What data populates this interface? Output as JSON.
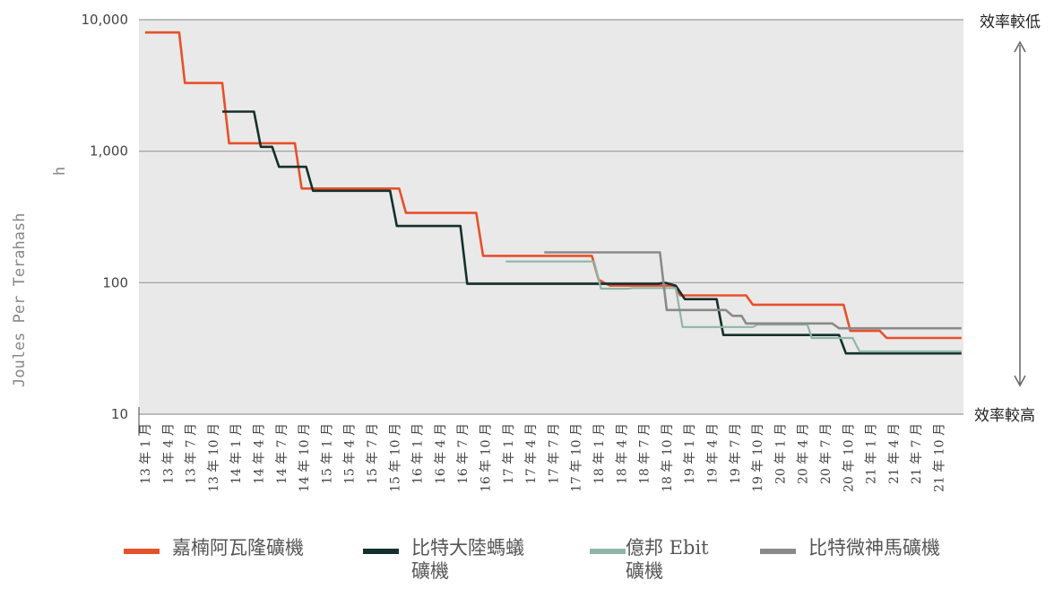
{
  "chart_data": {
    "type": "line",
    "ylabel": "Joules Per Terahash",
    "ylabel_tail": "h",
    "yscale": "log",
    "ylim": [
      10,
      10000
    ],
    "ytick_labels": [
      "10,000",
      "1,000",
      "100",
      "10"
    ],
    "annotation_top": "效率較低",
    "annotation_bottom": "效率較高",
    "categories": [
      "13 年 1 月",
      "13 年 4 月",
      "13 年 7 月",
      "13 年 10 月",
      "14 年 1 月",
      "14 年 4 月",
      "14 年 7 月",
      "14 年 10 月",
      "15 年 1 月",
      "15 年 4 月",
      "15 年 7 月",
      "15 年 10 月",
      "16 年 1 月",
      "16 年 4 月",
      "16 年 7 月",
      "16 年 10 月",
      "17 年 1 月",
      "17 年 4 月",
      "17 年 7 月",
      "17 年 10 月",
      "18 年 1 月",
      "18 年 4 月",
      "18 年 7 月",
      "18 年 10 月",
      "19 年 1 月",
      "19 年 4 月",
      "19 年 7 月",
      "19 年 10 月",
      "20 年 1 月",
      "20 年 4 月",
      "20 年 7 月",
      "20 年 10 月",
      "21 年 1 月",
      "21 年 4 月",
      "21 年 7 月",
      "21 年 10 月"
    ],
    "grid": true,
    "legend_position": "bottom",
    "series": [
      {
        "name": "嘉楠阿瓦隆礦機",
        "color": "#e8502a",
        "points": [
          [
            0,
            8000
          ],
          [
            1.5,
            8000
          ],
          [
            1.75,
            3300
          ],
          [
            3.4,
            3300
          ],
          [
            3.7,
            1150
          ],
          [
            6.6,
            1150
          ],
          [
            6.9,
            520
          ],
          [
            11.2,
            520
          ],
          [
            11.5,
            340
          ],
          [
            14.6,
            340
          ],
          [
            14.9,
            160
          ],
          [
            19.7,
            160
          ],
          [
            20,
            105
          ],
          [
            20.5,
            95
          ],
          [
            23.3,
            95
          ],
          [
            23.6,
            80
          ],
          [
            26.5,
            80
          ],
          [
            26.8,
            68
          ],
          [
            30.8,
            68
          ],
          [
            31.1,
            43
          ],
          [
            32.4,
            43
          ],
          [
            32.7,
            38
          ],
          [
            36,
            38
          ]
        ]
      },
      {
        "name": "比特大陸螞蟻礦機",
        "color": "#15302c",
        "points": [
          [
            3.4,
            2000
          ],
          [
            4.8,
            2000
          ],
          [
            5.1,
            1080
          ],
          [
            5.6,
            1080
          ],
          [
            5.9,
            760
          ],
          [
            7.1,
            760
          ],
          [
            7.4,
            500
          ],
          [
            10.8,
            500
          ],
          [
            11.1,
            270
          ],
          [
            13.9,
            270
          ],
          [
            14.2,
            98
          ],
          [
            22.6,
            98
          ],
          [
            22.9,
            100
          ],
          [
            23.4,
            95
          ],
          [
            23.8,
            75
          ],
          [
            25.2,
            75
          ],
          [
            25.5,
            40
          ],
          [
            30.6,
            40
          ],
          [
            30.9,
            29
          ],
          [
            36,
            29
          ]
        ]
      },
      {
        "name": "億邦 Ebit 礦機",
        "color": "#8fb5a9",
        "points": [
          [
            15.9,
            145
          ],
          [
            19.8,
            145
          ],
          [
            20.1,
            90
          ],
          [
            21.3,
            90
          ],
          [
            21.5,
            91
          ],
          [
            23.4,
            91
          ],
          [
            23.7,
            46
          ],
          [
            26.8,
            46
          ],
          [
            27,
            48
          ],
          [
            29.2,
            48
          ],
          [
            29.4,
            38
          ],
          [
            31.2,
            38
          ],
          [
            31.5,
            30
          ],
          [
            36,
            30
          ]
        ]
      },
      {
        "name": "比特微神馬礦機",
        "color": "#8a8a8a",
        "points": [
          [
            17.6,
            170
          ],
          [
            22.7,
            170
          ],
          [
            23.0,
            62
          ],
          [
            25.6,
            62
          ],
          [
            25.9,
            56
          ],
          [
            26.3,
            56
          ],
          [
            26.5,
            49
          ],
          [
            30.3,
            49
          ],
          [
            30.6,
            45
          ],
          [
            36,
            45
          ]
        ]
      }
    ]
  },
  "legend": [
    {
      "label_lines": [
        "嘉楠阿瓦隆礦機"
      ]
    },
    {
      "label_lines": [
        "比特大陸螞蟻",
        "礦機"
      ]
    },
    {
      "label_lines": [
        "億邦 Ebit",
        "礦機"
      ]
    },
    {
      "label_lines": [
        "比特微神馬礦機"
      ]
    }
  ]
}
